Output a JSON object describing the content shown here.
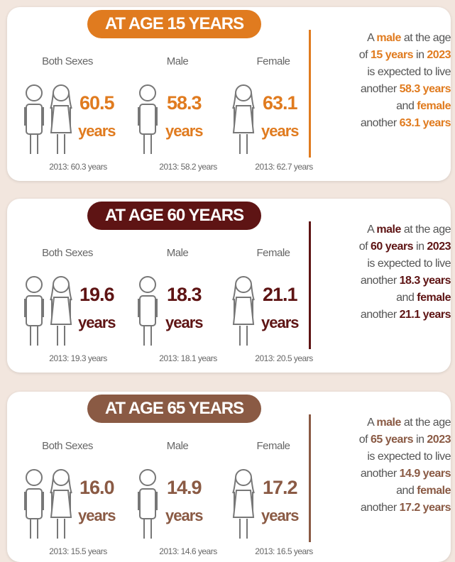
{
  "sections": [
    {
      "title": "AT AGE 15 YEARS",
      "color": "#e07b1f",
      "groups": [
        {
          "label": "Both Sexes",
          "value": "60.5",
          "unit": "years",
          "previous": "2013: 60.3 years"
        },
        {
          "label": "Male",
          "value": "58.3",
          "unit": "years",
          "previous": "2013: 58.2 years"
        },
        {
          "label": "Female",
          "value": "63.1",
          "unit": "years",
          "previous": "2013: 62.7 years"
        }
      ],
      "note_lines": [
        [
          {
            "text": "A "
          },
          {
            "text": "male",
            "bold": true
          },
          {
            "text": " at the age"
          }
        ],
        [
          {
            "text": "of "
          },
          {
            "text": "15 years",
            "bold": true
          },
          {
            "text": " in "
          },
          {
            "text": "2023",
            "bold": true
          }
        ],
        [
          {
            "text": "is expected to live"
          }
        ],
        [
          {
            "text": "another "
          },
          {
            "text": "58.3 years",
            "bold": true
          }
        ],
        [
          {
            "text": "and "
          },
          {
            "text": "female",
            "bold": true
          }
        ],
        [
          {
            "text": "another "
          },
          {
            "text": "63.1 years",
            "bold": true
          }
        ]
      ]
    },
    {
      "title": "AT AGE 60 YEARS",
      "color": "#5e1414",
      "groups": [
        {
          "label": "Both Sexes",
          "value": "19.6",
          "unit": "years",
          "previous": "2013: 19.3 years"
        },
        {
          "label": "Male",
          "value": "18.3",
          "unit": "years",
          "previous": "2013: 18.1 years"
        },
        {
          "label": "Female",
          "value": "21.1",
          "unit": "years",
          "previous": "2013: 20.5 years"
        }
      ],
      "note_lines": [
        [
          {
            "text": "A "
          },
          {
            "text": "male",
            "bold": true
          },
          {
            "text": " at the age"
          }
        ],
        [
          {
            "text": "of "
          },
          {
            "text": "60 years",
            "bold": true
          },
          {
            "text": " in "
          },
          {
            "text": "2023",
            "bold": true
          }
        ],
        [
          {
            "text": "is expected to live"
          }
        ],
        [
          {
            "text": "another "
          },
          {
            "text": "18.3 years",
            "bold": true
          }
        ],
        [
          {
            "text": "and "
          },
          {
            "text": "female",
            "bold": true
          }
        ],
        [
          {
            "text": "another "
          },
          {
            "text": "21.1 years",
            "bold": true
          }
        ]
      ]
    },
    {
      "title": "AT AGE 65 YEARS",
      "color": "#8a5a44",
      "groups": [
        {
          "label": "Both Sexes",
          "value": "16.0",
          "unit": "years",
          "previous": "2013: 15.5 years"
        },
        {
          "label": "Male",
          "value": "14.9",
          "unit": "years",
          "previous": "2013: 14.6 years"
        },
        {
          "label": "Female",
          "value": "17.2",
          "unit": "years",
          "previous": "2013: 16.5 years"
        }
      ],
      "note_lines": [
        [
          {
            "text": "A "
          },
          {
            "text": "male",
            "bold": true
          },
          {
            "text": " at the age"
          }
        ],
        [
          {
            "text": "of "
          },
          {
            "text": "65 years",
            "bold": true
          },
          {
            "text": " in "
          },
          {
            "text": "2023",
            "bold": true
          }
        ],
        [
          {
            "text": "is expected to live"
          }
        ],
        [
          {
            "text": "another "
          },
          {
            "text": "14.9 years",
            "bold": true
          }
        ],
        [
          {
            "text": "and "
          },
          {
            "text": "female",
            "bold": true
          }
        ],
        [
          {
            "text": "another "
          },
          {
            "text": "17.2 years",
            "bold": true
          }
        ]
      ]
    }
  ]
}
